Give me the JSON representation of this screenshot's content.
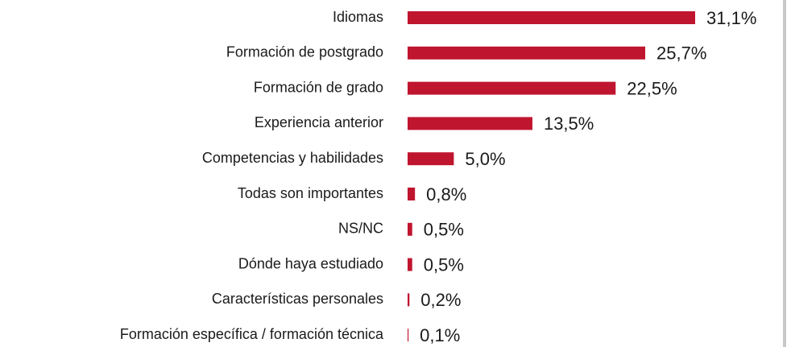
{
  "chart_data": {
    "type": "bar",
    "orientation": "horizontal",
    "categories": [
      "Idiomas",
      "Formación de postgrado",
      "Formación de grado",
      "Experiencia anterior",
      "Competencias y habilidades",
      "Todas son importantes",
      "NS/NC",
      "Dónde haya estudiado",
      "Características personales",
      "Formación específica / formación técnica"
    ],
    "values": [
      31.1,
      25.7,
      22.5,
      13.5,
      5.0,
      0.8,
      0.5,
      0.5,
      0.2,
      0.1
    ],
    "value_labels": [
      "31,1%",
      "25,7%",
      "22,5%",
      "13,5%",
      "5,0%",
      "0,8%",
      "0,5%",
      "0,5%",
      "0,2%",
      "0,1%"
    ],
    "color": "#c0152f"
  }
}
